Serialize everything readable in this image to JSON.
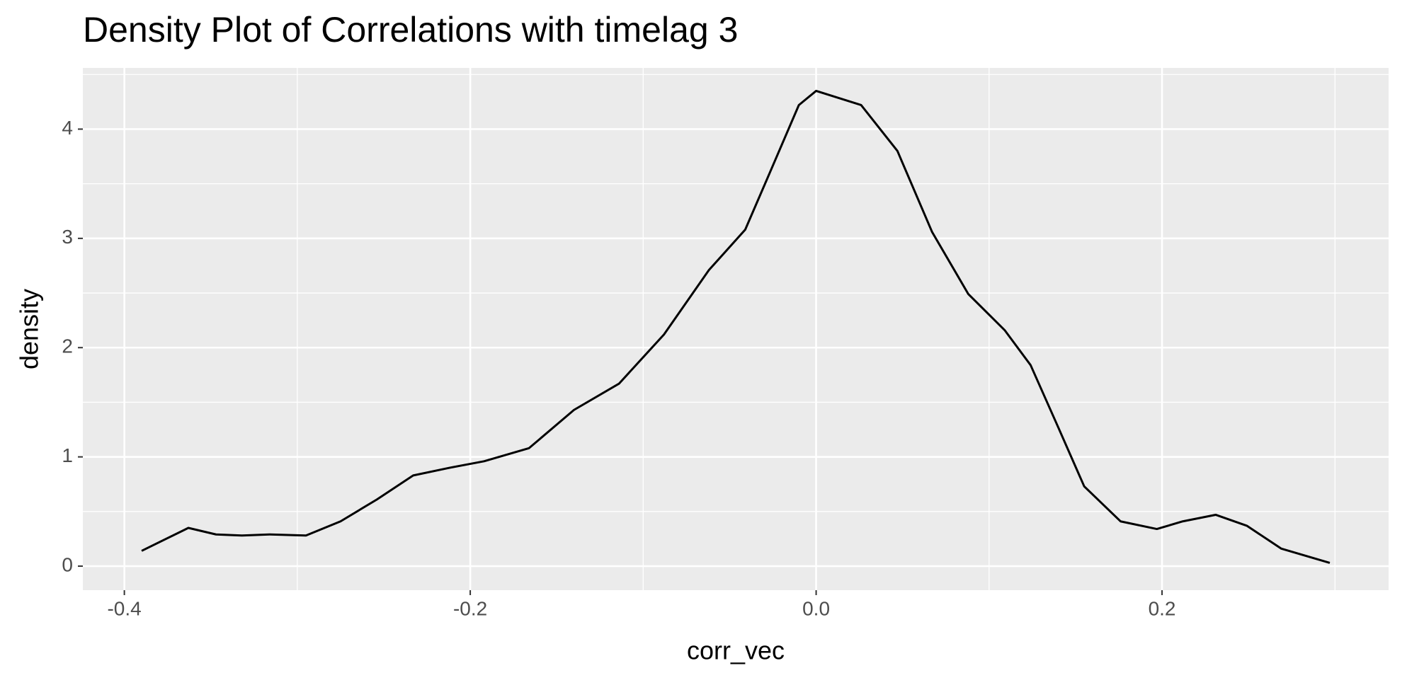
{
  "chart_data": {
    "type": "line",
    "title": "Density Plot of Correlations with timelag 3",
    "x_label": "corr_vec",
    "y_label": "density",
    "x": [
      -0.39,
      -0.363,
      -0.347,
      -0.332,
      -0.316,
      -0.295,
      -0.275,
      -0.254,
      -0.233,
      -0.212,
      -0.192,
      -0.166,
      -0.14,
      -0.114,
      -0.088,
      -0.062,
      -0.041,
      -0.026,
      -0.01,
      0.0,
      0.026,
      0.047,
      0.067,
      0.088,
      0.109,
      0.124,
      0.14,
      0.155,
      0.176,
      0.197,
      0.212,
      0.231,
      0.249,
      0.269,
      0.297
    ],
    "values": [
      0.14,
      0.35,
      0.29,
      0.28,
      0.29,
      0.28,
      0.41,
      0.61,
      0.83,
      0.9,
      0.96,
      1.08,
      1.43,
      1.67,
      2.12,
      2.71,
      3.08,
      3.63,
      4.22,
      4.35,
      4.22,
      3.8,
      3.06,
      2.49,
      2.16,
      1.84,
      1.27,
      0.73,
      0.41,
      0.34,
      0.41,
      0.47,
      0.37,
      0.16,
      0.03
    ],
    "color": "#000000",
    "xlim": [
      -0.424,
      0.331
    ],
    "ylim": [
      -0.22,
      4.56
    ],
    "xticks": [
      -0.4,
      -0.2,
      {
        "value": 0,
        "label": "0.0"
      },
      0.2
    ],
    "yticks": [
      0,
      1,
      2,
      3,
      4
    ],
    "grid": true
  }
}
